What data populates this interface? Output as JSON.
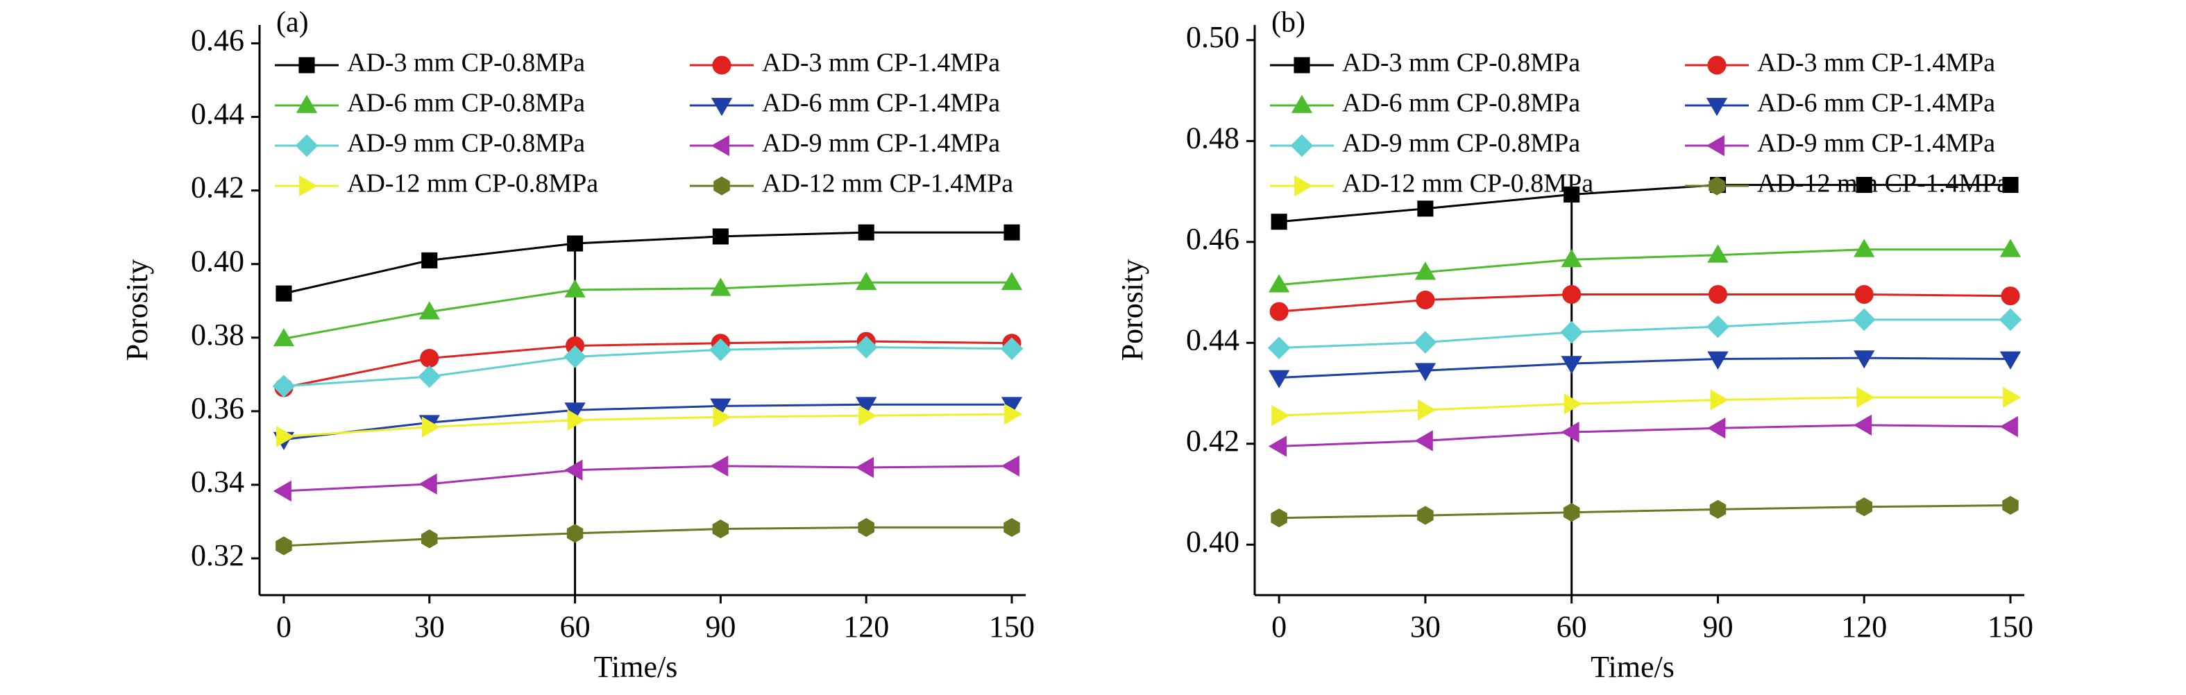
{
  "chart_data": [
    {
      "type": "line",
      "panel_label": "(a)",
      "xlabel": "Time/s",
      "ylabel": "Porosity",
      "x": [
        0,
        30,
        60,
        90,
        120,
        150
      ],
      "xlim": [
        -5,
        150
      ],
      "xticks": [
        0,
        30,
        60,
        90,
        120,
        150
      ],
      "ylim": [
        0.31,
        0.465
      ],
      "yticks": [
        0.32,
        0.34,
        0.36,
        0.38,
        {
          "value": 0.4,
          "label": "0.40"
        },
        0.42,
        0.44,
        0.46
      ],
      "vline": 60,
      "series": [
        {
          "name": "AD-3 mm CP-0.8MPa",
          "color": "#000000",
          "marker": "square",
          "values": [
            0.392,
            0.401,
            0.4056,
            0.4075,
            0.4086,
            0.4086
          ]
        },
        {
          "name": "AD-3 mm CP-1.4MPa",
          "color": "#e0211d",
          "marker": "circle",
          "values": [
            0.3664,
            0.3744,
            0.3778,
            0.3785,
            0.379,
            0.3785
          ]
        },
        {
          "name": "AD-6 mm CP-0.8MPa",
          "color": "#4cbb2c",
          "marker": "triangle-up",
          "values": [
            0.3797,
            0.387,
            0.393,
            0.3934,
            0.395,
            0.395
          ]
        },
        {
          "name": "AD-6 mm CP-1.4MPa",
          "color": "#1f3fa8",
          "marker": "triangle-down",
          "values": [
            0.3523,
            0.3569,
            0.3603,
            0.3614,
            0.3618,
            0.3618
          ]
        },
        {
          "name": "AD-9 mm CP-0.8MPa",
          "color": "#5fd0d4",
          "marker": "diamond",
          "values": [
            0.3668,
            0.3694,
            0.3748,
            0.3767,
            0.3774,
            0.377
          ]
        },
        {
          "name": "AD-9 mm CP-1.4MPa",
          "color": "#a92fb3",
          "marker": "triangle-left",
          "values": [
            0.3383,
            0.3402,
            0.344,
            0.3451,
            0.3447,
            0.3451
          ]
        },
        {
          "name": "AD-12 mm CP-0.8MPa",
          "color": "#f0f02a",
          "marker": "triangle-right",
          "values": [
            0.3531,
            0.3557,
            0.3576,
            0.3584,
            0.3588,
            0.3592
          ]
        },
        {
          "name": "AD-12 mm CP-1.4MPa",
          "color": "#6b7a22",
          "marker": "hexagon",
          "values": [
            0.3234,
            0.3253,
            0.3268,
            0.328,
            0.3284,
            0.3284
          ]
        }
      ]
    },
    {
      "type": "line",
      "panel_label": "(b)",
      "xlabel": "Time/s",
      "ylabel": "Porosity",
      "x": [
        0,
        30,
        60,
        90,
        120,
        150
      ],
      "xlim": [
        -5,
        150
      ],
      "xticks": [
        0,
        30,
        60,
        90,
        120,
        150
      ],
      "ylim": [
        0.39,
        0.503
      ],
      "yticks": [
        {
          "value": 0.4,
          "label": "0.40"
        },
        0.42,
        0.44,
        0.46,
        0.48,
        {
          "value": 0.5,
          "label": "0.50"
        }
      ],
      "vline": 60,
      "series": [
        {
          "name": "AD-3 mm CP-0.8MPa",
          "color": "#000000",
          "marker": "square",
          "values": [
            0.464,
            0.4666,
            0.4694,
            0.4713,
            0.4713,
            0.4713
          ]
        },
        {
          "name": "AD-3 mm CP-1.4MPa",
          "color": "#e0211d",
          "marker": "circle",
          "values": [
            0.4462,
            0.4485,
            0.4496,
            0.4496,
            0.4496,
            0.4493
          ]
        },
        {
          "name": "AD-6 mm CP-0.8MPa",
          "color": "#4cbb2c",
          "marker": "triangle-up",
          "values": [
            0.4515,
            0.454,
            0.4565,
            0.4574,
            0.4585,
            0.4585
          ]
        },
        {
          "name": "AD-6 mm CP-1.4MPa",
          "color": "#1f3fa8",
          "marker": "triangle-down",
          "values": [
            0.4331,
            0.4345,
            0.4359,
            0.4368,
            0.437,
            0.4368
          ]
        },
        {
          "name": "AD-9 mm CP-0.8MPa",
          "color": "#5fd0d4",
          "marker": "diamond",
          "values": [
            0.439,
            0.4401,
            0.4421,
            0.4432,
            0.4446,
            0.4446
          ]
        },
        {
          "name": "AD-9 mm CP-1.4MPa",
          "color": "#a92fb3",
          "marker": "triangle-left",
          "values": [
            0.4195,
            0.4206,
            0.4223,
            0.4231,
            0.4237,
            0.4234
          ]
        },
        {
          "name": "AD-12 mm CP-0.8MPa",
          "color": "#f0f02a",
          "marker": "triangle-right",
          "values": [
            0.4256,
            0.4267,
            0.4279,
            0.4287,
            0.4292,
            0.4292
          ]
        },
        {
          "name": "AD-12 mm CP-1.4MPa",
          "color": "#6b7a22",
          "marker": "hexagon",
          "values": [
            0.4053,
            0.4058,
            0.4064,
            0.407,
            0.4075,
            0.4078
          ]
        }
      ]
    }
  ]
}
